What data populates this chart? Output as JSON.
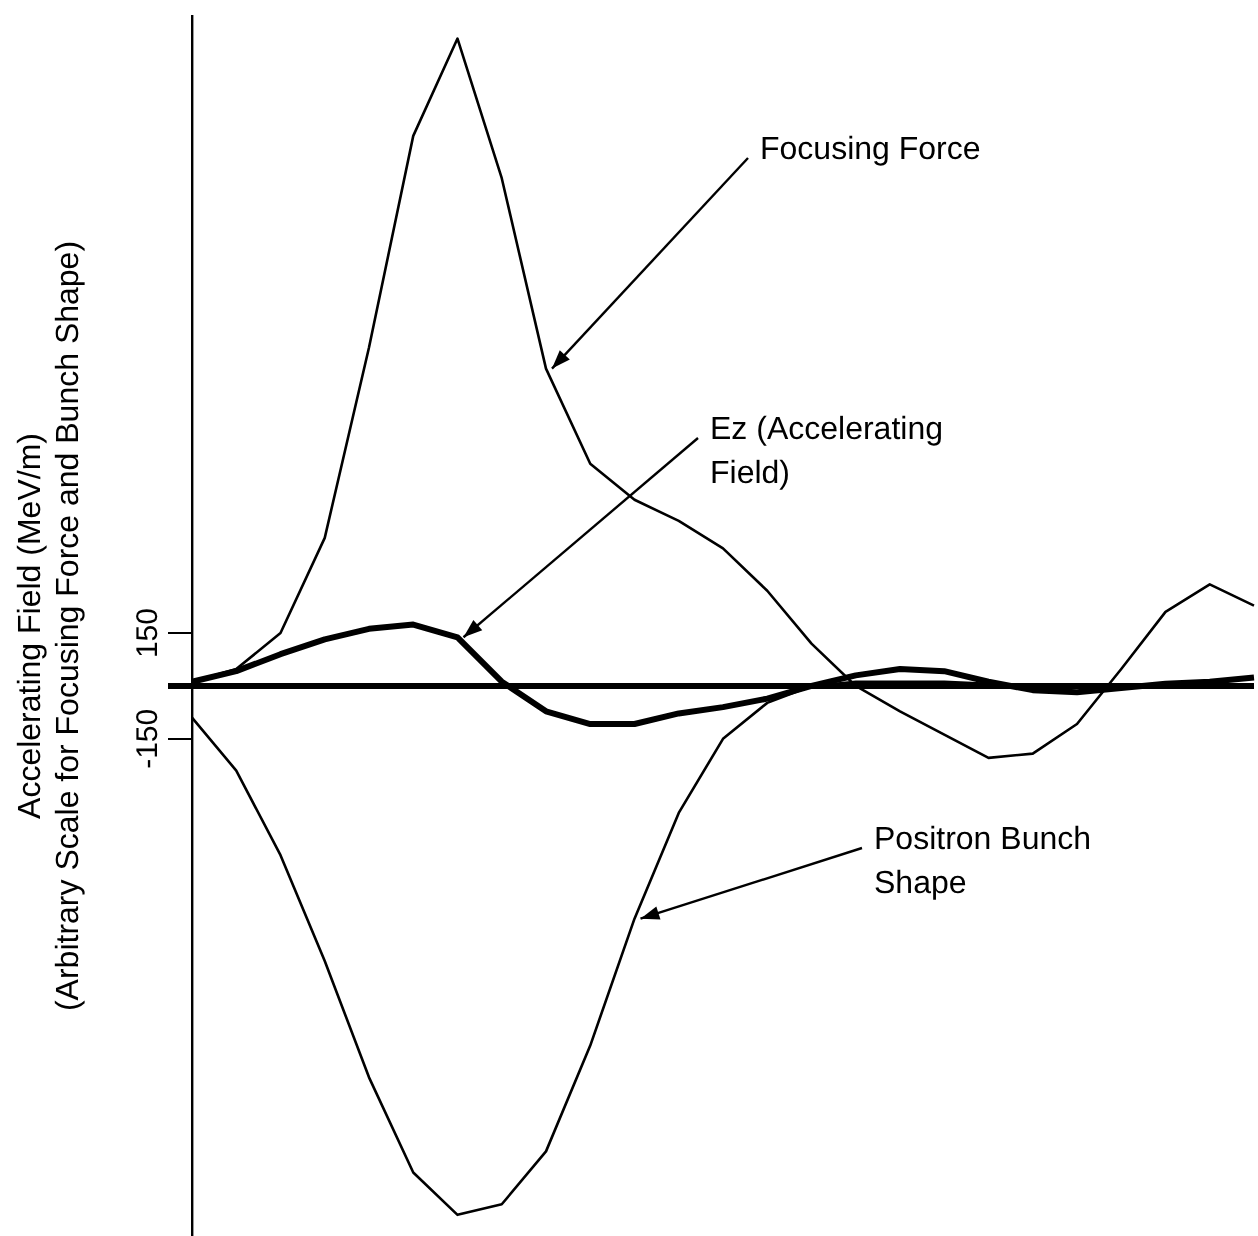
{
  "chart_data": {
    "type": "line",
    "ylabel": "Accelerating Field (MeV/m)\n(Arbitrary Scale for Focusing Force and Bunch Shape)",
    "categories": [
      null,
      null,
      null,
      null,
      null,
      null,
      null,
      null,
      null,
      null,
      null,
      null,
      null,
      null,
      null,
      null,
      null,
      null,
      null,
      null,
      null,
      null,
      null,
      null,
      null
    ],
    "series": [
      {
        "color": "#000000",
        "values": [
          12,
          48,
          150,
          420,
          960,
          1560,
          1836,
          1440,
          900,
          630,
          528,
          468,
          390,
          270,
          120,
          0,
          -72,
          -138,
          -204,
          -192,
          -108,
          48,
          210,
          288,
          228
        ]
      },
      {
        "color": "#000000",
        "values": [
          12,
          42,
          90,
          132,
          162,
          174,
          138,
          12,
          -72,
          -108,
          -108,
          -78,
          -60,
          -36,
          0,
          30,
          48,
          42,
          12,
          -12,
          -18,
          -6,
          6,
          12,
          24
        ]
      },
      {
        "color": "#000000",
        "values": [
          -90,
          -240,
          -480,
          -780,
          -1110,
          -1380,
          -1500,
          -1470,
          -1320,
          -1020,
          -660,
          -360,
          -150,
          -48,
          0,
          12,
          12,
          12,
          6,
          0,
          0,
          0,
          0,
          0,
          0
        ]
      }
    ],
    "annotations": [
      "Focusing Force",
      "Ez (Accelerating Field)",
      "Positron Bunch Shape"
    ],
    "ylim": [
      -1560,
      1900
    ],
    "yticks": [
      -150,
      150
    ],
    "tick_labels": "y",
    "legend": false,
    "grid": false,
    "marker": "none",
    "line_style": "solid",
    "ref_lines": [
      {
        "axis": "y",
        "value": 0,
        "color": "#000000"
      }
    ]
  }
}
